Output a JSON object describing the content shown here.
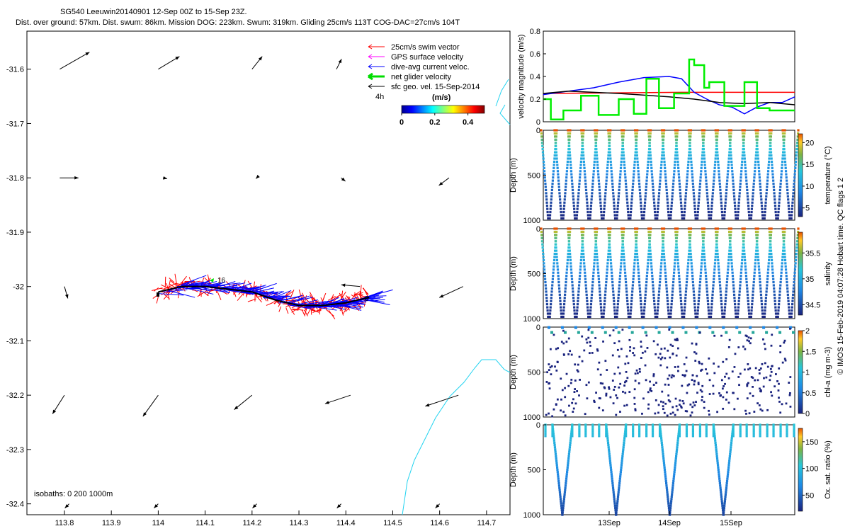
{
  "header": {
    "line1": "SG540 Leeuwin20140901 12-Sep 00Z to 15-Sep 23Z.",
    "line2": "Dist. over ground: 57km. Dist. swum: 86km. Mission DOG: 223km. Swum: 319km. Gliding 25cm/s 113T COG-DAC=27cm/s 104T"
  },
  "credit": "© IMOS 15-Feb-2019 04:07:28 Hobart time. QC flags 1  2",
  "colors": {
    "swim": "#ff0000",
    "gps": "#ff00ff",
    "dac": "#0000ff",
    "net": "#00dd00",
    "sfc": "#000000",
    "isobath": "#22d3f0"
  },
  "chart_data": [
    {
      "type": "map",
      "xlim": [
        113.72,
        114.75
      ],
      "ylim": [
        -32.42,
        -31.53
      ],
      "x_ticks": [
        "113.8",
        "113.9",
        "114",
        "114.1",
        "114.2",
        "114.3",
        "114.4",
        "114.5",
        "114.6",
        "114.7"
      ],
      "y_ticks": [
        "-31.6",
        "-31.7",
        "-31.8",
        "-31.9",
        "-32",
        "-32.1",
        "-32.2",
        "-32.3",
        "-32.4"
      ],
      "legend": {
        "placement": "top-right",
        "items": [
          "25cm/s swim vector",
          "GPS surface velocity",
          "dive-avg current veloc.",
          "net glider velocity",
          "sfc geo. vel. 15-Sep-2014"
        ],
        "extra": "4h"
      },
      "colorbar": {
        "label": "(m/s)",
        "ticks": [
          "0",
          "0.2",
          "0.4"
        ],
        "range": [
          0,
          0.5
        ]
      },
      "isobaths_label": "isobaths: 0   200   1000m",
      "track_labels": [
        "16",
        "0"
      ],
      "track": [
        [
          114.0,
          -32.01
        ],
        [
          114.05,
          -32.0
        ],
        [
          114.1,
          -32.0
        ],
        [
          114.15,
          -32.005
        ],
        [
          114.2,
          -32.01
        ],
        [
          114.25,
          -32.025
        ],
        [
          114.3,
          -32.035
        ],
        [
          114.35,
          -32.035
        ],
        [
          114.4,
          -32.03
        ],
        [
          114.45,
          -32.02
        ]
      ],
      "sfc_arrows": [
        {
          "x": 113.79,
          "y": -31.6,
          "u": 0.35,
          "v": 0.2
        },
        {
          "x": 114.0,
          "y": -31.6,
          "u": 0.25,
          "v": 0.15
        },
        {
          "x": 114.2,
          "y": -31.6,
          "u": 0.12,
          "v": 0.15
        },
        {
          "x": 114.38,
          "y": -31.6,
          "u": 0.06,
          "v": 0.12
        },
        {
          "x": 113.79,
          "y": -31.8,
          "u": 0.22,
          "v": 0.0
        },
        {
          "x": 114.01,
          "y": -31.8,
          "u": 0.05,
          "v": -0.01
        },
        {
          "x": 114.21,
          "y": -31.8,
          "u": -0.01,
          "v": -0.01
        },
        {
          "x": 114.39,
          "y": -31.8,
          "u": 0.05,
          "v": -0.04
        },
        {
          "x": 114.62,
          "y": -31.8,
          "u": -0.12,
          "v": -0.09
        },
        {
          "x": 113.8,
          "y": -32.0,
          "u": 0.04,
          "v": -0.14
        },
        {
          "x": 114.43,
          "y": -32.0,
          "u": -0.22,
          "v": 0.02
        },
        {
          "x": 114.65,
          "y": -32.0,
          "u": -0.28,
          "v": -0.13
        },
        {
          "x": 113.8,
          "y": -32.2,
          "u": -0.14,
          "v": -0.22
        },
        {
          "x": 114.0,
          "y": -32.2,
          "u": -0.18,
          "v": -0.25
        },
        {
          "x": 114.2,
          "y": -32.2,
          "u": -0.21,
          "v": -0.17
        },
        {
          "x": 114.41,
          "y": -32.2,
          "u": -0.3,
          "v": -0.1
        },
        {
          "x": 114.64,
          "y": -32.2,
          "u": -0.39,
          "v": -0.13
        },
        {
          "x": 113.81,
          "y": -32.4,
          "u": -0.05,
          "v": -0.05
        },
        {
          "x": 114.0,
          "y": -32.4,
          "u": -0.05,
          "v": -0.05
        },
        {
          "x": 114.21,
          "y": -32.4,
          "u": -0.05,
          "v": -0.05
        },
        {
          "x": 114.39,
          "y": -32.4,
          "u": -0.05,
          "v": -0.05
        },
        {
          "x": 114.6,
          "y": -32.4,
          "u": -0.05,
          "v": -0.05
        }
      ]
    },
    {
      "type": "line",
      "ylabel": "velocity magnitude (m/s)",
      "ylim": [
        0,
        0.8
      ],
      "y_ticks": [
        "0",
        "0.2",
        "0.4",
        "0.6",
        "0.8"
      ],
      "series": [
        {
          "color": "red",
          "x": [
            0,
            0.55,
            0.62,
            1
          ],
          "y": [
            0.25,
            0.26,
            0.26,
            0.26
          ]
        },
        {
          "color": "blue",
          "x": [
            0,
            0.1,
            0.2,
            0.3,
            0.4,
            0.5,
            0.55,
            0.6,
            0.65,
            0.7,
            0.75,
            0.8,
            0.85,
            0.9,
            0.95,
            1
          ],
          "y": [
            0.24,
            0.27,
            0.3,
            0.35,
            0.39,
            0.4,
            0.38,
            0.26,
            0.2,
            0.15,
            0.13,
            0.07,
            0.13,
            0.17,
            0.17,
            0.22
          ]
        },
        {
          "color": "black",
          "x": [
            0,
            0.1,
            0.3,
            0.5,
            0.6,
            0.7,
            0.8,
            0.9,
            1
          ],
          "y": [
            0.25,
            0.27,
            0.25,
            0.22,
            0.2,
            0.17,
            0.16,
            0.17,
            0.15
          ]
        },
        {
          "color": "green",
          "x": [
            0,
            0.03,
            0.03,
            0.08,
            0.08,
            0.15,
            0.15,
            0.22,
            0.22,
            0.3,
            0.3,
            0.36,
            0.36,
            0.41,
            0.41,
            0.46,
            0.46,
            0.52,
            0.52,
            0.58,
            0.58,
            0.6,
            0.6,
            0.64,
            0.64,
            0.66,
            0.66,
            0.72,
            0.72,
            0.8,
            0.8,
            0.85,
            0.85,
            0.9,
            0.9,
            1
          ],
          "y": [
            0.2,
            0.2,
            0.02,
            0.02,
            0.1,
            0.1,
            0.23,
            0.23,
            0.06,
            0.06,
            0.2,
            0.2,
            0.07,
            0.07,
            0.38,
            0.38,
            0.12,
            0.12,
            0.25,
            0.25,
            0.55,
            0.55,
            0.5,
            0.5,
            0.3,
            0.3,
            0.35,
            0.35,
            0.14,
            0.14,
            0.35,
            0.35,
            0.12,
            0.12,
            0.1,
            0.1
          ]
        }
      ]
    },
    {
      "type": "scatter",
      "ylabel": "Depth (m)",
      "cbar_label": "temperature (°C)",
      "cbar_ticks": [
        "5",
        "10",
        "15",
        "20"
      ],
      "cbar_range": [
        3,
        22
      ],
      "ylim": [
        0,
        1000
      ],
      "y_ticks": [
        "0",
        "500",
        "1000"
      ]
    },
    {
      "type": "scatter",
      "ylabel": "Depth (m)",
      "cbar_label": "salinity",
      "cbar_ticks": [
        "34.5",
        "35",
        "35.5"
      ],
      "cbar_range": [
        34.3,
        35.9
      ],
      "ylim": [
        0,
        1000
      ],
      "y_ticks": [
        "0",
        "500",
        "1000"
      ]
    },
    {
      "type": "scatter",
      "ylabel": "Depth (m)",
      "cbar_label": "chl-a (mg m-3)",
      "cbar_ticks": [
        "0",
        "0.5",
        "1",
        "1.5",
        "2"
      ],
      "cbar_range": [
        0,
        2
      ],
      "ylim": [
        0,
        1000
      ],
      "y_ticks": [
        "0",
        "500",
        "1000"
      ]
    },
    {
      "type": "scatter",
      "ylabel": "Depth (m)",
      "cbar_label": "Ox. sat. ratio (%)",
      "cbar_ticks": [
        "50",
        "100",
        "150"
      ],
      "cbar_range": [
        20,
        175
      ],
      "ylim": [
        0,
        1000
      ],
      "y_ticks": [
        "0",
        "500",
        "1000"
      ],
      "x_ticks": [
        "13Sep",
        "14Sep",
        "15Sep"
      ]
    }
  ]
}
